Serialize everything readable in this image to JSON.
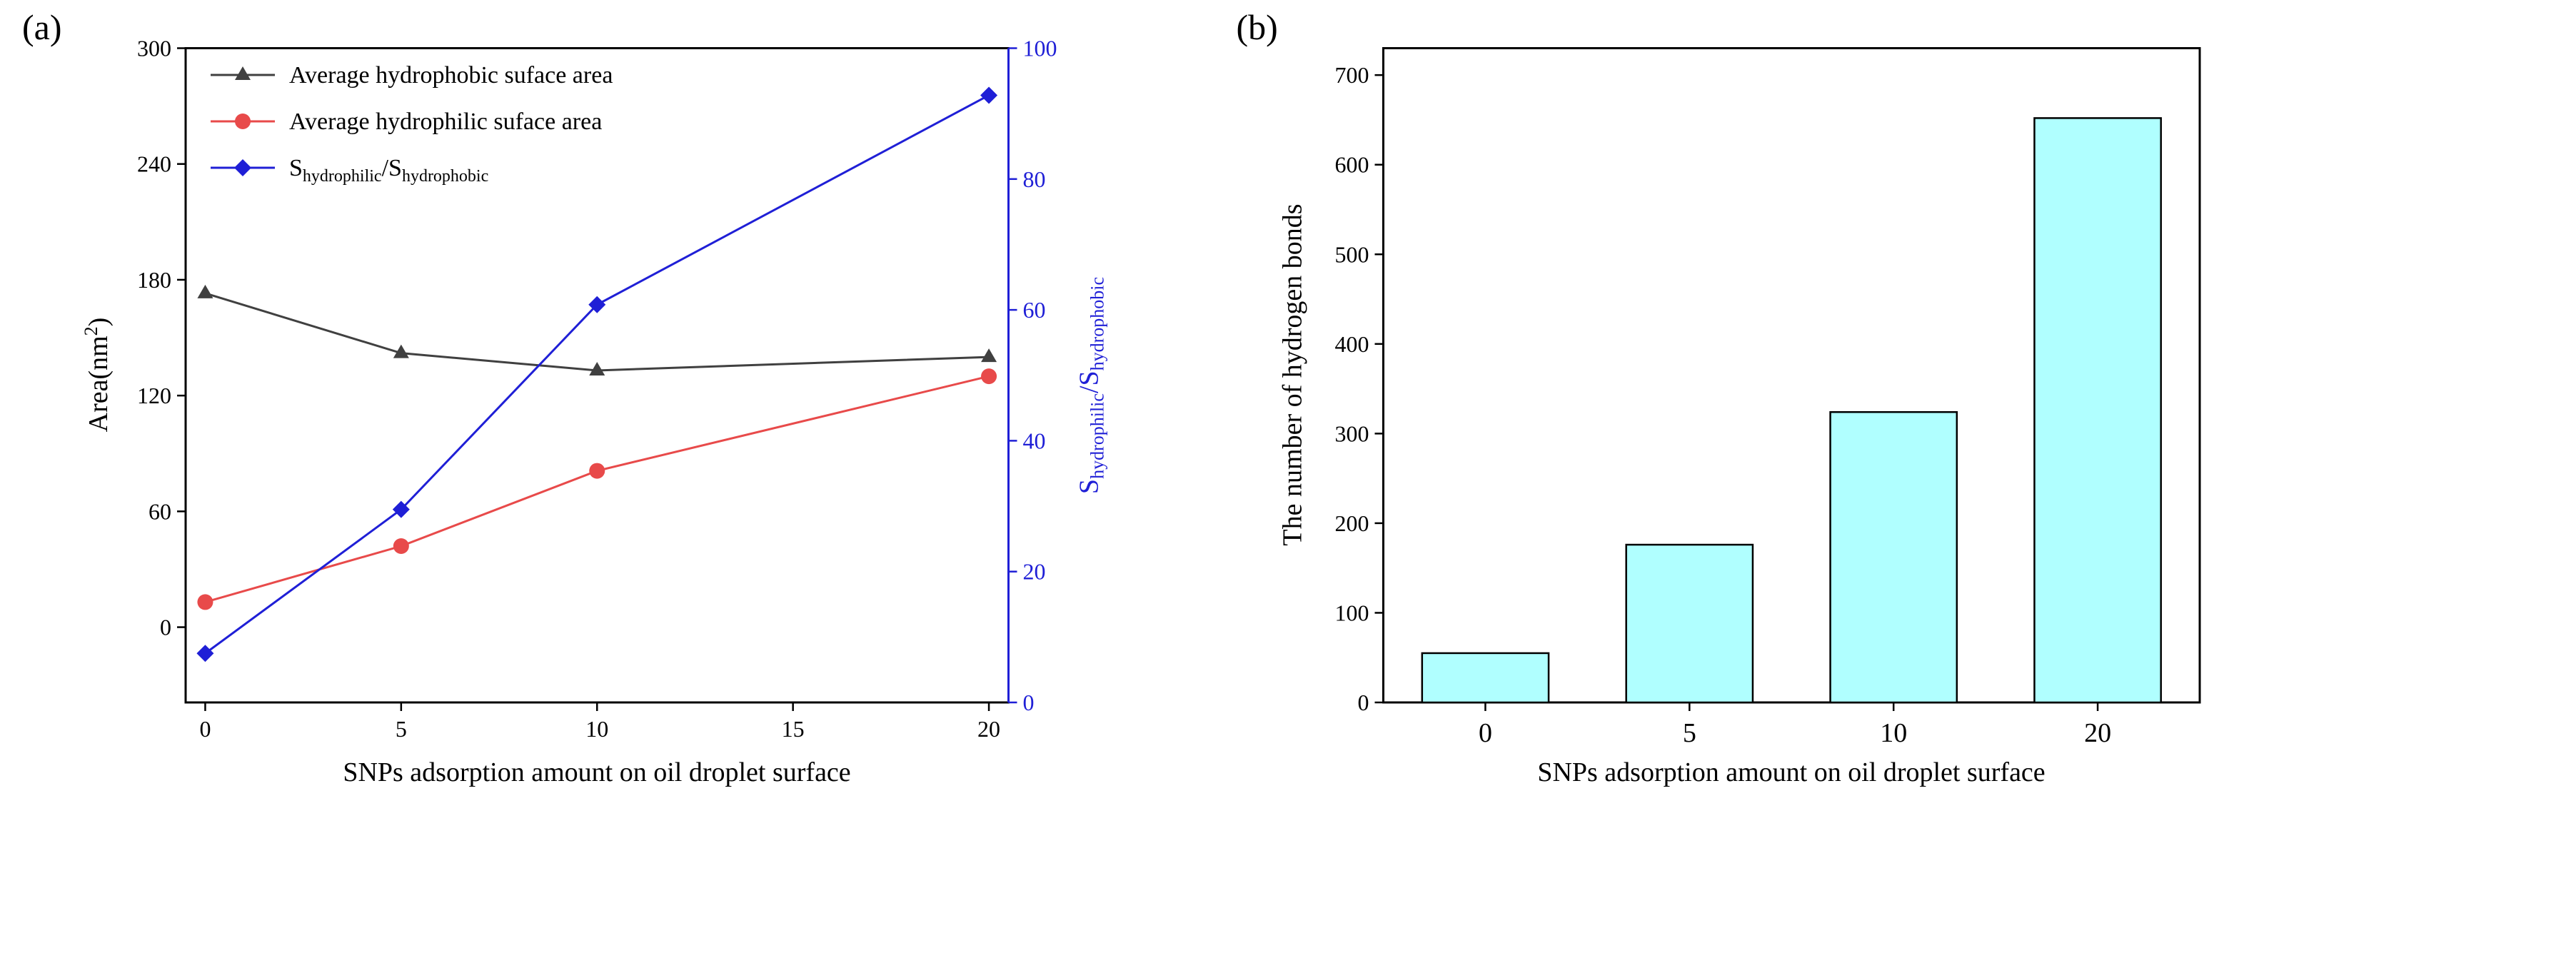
{
  "chart_data": [
    {
      "panel_label": "(a)",
      "type": "line",
      "x": [
        0,
        5,
        10,
        20
      ],
      "xlabel": "SNPs adsorption amount on oil droplet surface",
      "x_ticks": [
        0,
        5,
        10,
        15,
        20
      ],
      "xlim": [
        -0.5,
        20.5
      ],
      "ylabel": {
        "main": "Area(nm",
        "sup": "2",
        "close": ")"
      },
      "y_ticks": [
        0,
        60,
        120,
        180,
        240,
        300
      ],
      "ylim": [
        -39,
        300
      ],
      "y2label": {
        "s1": "S",
        "sub1": "hydrophilic",
        "slash": "/S",
        "sub2": "hydrophobic"
      },
      "y2_ticks": [
        0,
        20,
        40,
        60,
        80,
        100
      ],
      "y2lim": [
        0,
        100
      ],
      "legend_position": "top-left",
      "series": [
        {
          "name": "Average hydrophobic suface area",
          "axis": "left",
          "marker": "triangle",
          "color": "#404040",
          "values": [
            173,
            142,
            133,
            140
          ]
        },
        {
          "name": "Average hydrophilic suface area",
          "axis": "left",
          "marker": "circle",
          "color": "#e84a4a",
          "values": [
            13,
            42,
            81,
            130
          ]
        },
        {
          "name": "S",
          "name_sub1": "hydrophilic",
          "name_mid": "/S",
          "name_sub2": "hydrophobic",
          "axis": "right",
          "marker": "diamond",
          "color": "#1f1fd6",
          "values": [
            7.5,
            29.5,
            60.8,
            92.8
          ]
        }
      ]
    },
    {
      "panel_label": "(b)",
      "type": "bar",
      "categories": [
        "0",
        "5",
        "10",
        "20"
      ],
      "values": [
        55,
        176,
        324,
        652
      ],
      "bar_color": "#b0ffff",
      "ylabel": "The number of hydrogen bonds",
      "xlabel": "SNPs adsorption amount on oil droplet surface",
      "y_ticks": [
        0,
        100,
        200,
        300,
        400,
        500,
        600,
        700
      ],
      "ylim": [
        0,
        730
      ]
    }
  ]
}
